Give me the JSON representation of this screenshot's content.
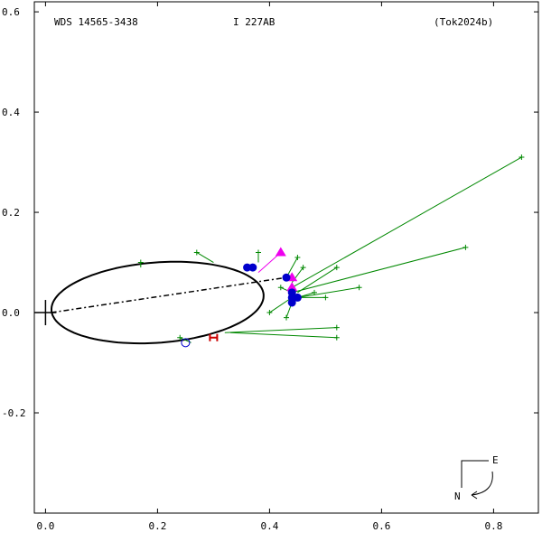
{
  "header": {
    "wds_id": "WDS 14565-3438",
    "discoverer": "I   227AB",
    "reference": "(Tok2024b)"
  },
  "compass": {
    "east_label": "E",
    "north_label": "N"
  },
  "colors": {
    "orbit": "#000000",
    "residual": "#008800",
    "obs_micrometer": "#008800",
    "obs_speckle": "#0000cc",
    "obs_hipparcos": "#cc0000",
    "obs_gaia_or_ao": "#ee00ee"
  },
  "chart_data": {
    "type": "scatter",
    "xlim": [
      -0.02,
      0.88
    ],
    "ylim": [
      -0.4,
      0.62
    ],
    "x_ticks": [
      "0.0",
      "0.2",
      "0.4",
      "0.6",
      "0.8"
    ],
    "x_tick_values": [
      0.0,
      0.2,
      0.4,
      0.6,
      0.8
    ],
    "y_ticks": [
      "0.6",
      "0.4",
      "0.2",
      "0.0",
      "-0.2"
    ],
    "y_tick_values": [
      0.6,
      0.4,
      0.2,
      0.0,
      -0.2
    ],
    "orbit_ellipse": {
      "center": [
        0.2,
        0.02
      ],
      "semi_axis_x": 0.19,
      "semi_axis_y": 0.08,
      "rotation_deg": 5
    },
    "line_of_nodes": [
      [
        0.01,
        0.0
      ],
      [
        0.43,
        0.07
      ]
    ],
    "primary": [
      0.0,
      0.0
    ],
    "micrometer_obs": [
      {
        "obs": [
          0.85,
          0.31
        ],
        "fit": [
          0.44,
          0.05
        ]
      },
      {
        "obs": [
          0.75,
          0.13
        ],
        "fit": [
          0.44,
          0.04
        ]
      },
      {
        "obs": [
          0.52,
          0.09
        ],
        "fit": [
          0.45,
          0.04
        ]
      },
      {
        "obs": [
          0.56,
          0.05
        ],
        "fit": [
          0.45,
          0.03
        ]
      },
      {
        "obs": [
          0.52,
          -0.03
        ],
        "fit": [
          0.32,
          -0.04
        ]
      },
      {
        "obs": [
          0.52,
          -0.05
        ],
        "fit": [
          0.33,
          -0.04
        ]
      },
      {
        "obs": [
          0.27,
          0.12
        ],
        "fit": [
          0.3,
          0.1
        ]
      },
      {
        "obs": [
          0.17,
          0.1
        ],
        "fit": [
          0.17,
          0.09
        ]
      },
      {
        "obs": [
          0.38,
          0.12
        ],
        "fit": [
          0.38,
          0.1
        ]
      },
      {
        "obs": [
          0.45,
          0.11
        ],
        "fit": [
          0.43,
          0.07
        ]
      },
      {
        "obs": [
          0.46,
          0.09
        ],
        "fit": [
          0.44,
          0.06
        ]
      },
      {
        "obs": [
          0.4,
          0.0
        ],
        "fit": [
          0.44,
          0.03
        ]
      },
      {
        "obs": [
          0.43,
          -0.01
        ],
        "fit": [
          0.44,
          0.02
        ]
      },
      {
        "obs": [
          0.48,
          0.04
        ],
        "fit": [
          0.45,
          0.03
        ]
      },
      {
        "obs": [
          0.42,
          0.05
        ],
        "fit": [
          0.44,
          0.04
        ]
      },
      {
        "obs": [
          0.24,
          -0.05
        ],
        "fit": [
          0.26,
          -0.06
        ]
      },
      {
        "obs": [
          0.5,
          0.03
        ],
        "fit": [
          0.45,
          0.03
        ]
      }
    ],
    "speckle_obs": [
      [
        0.36,
        0.09
      ],
      [
        0.37,
        0.09
      ],
      [
        0.43,
        0.07
      ],
      [
        0.44,
        0.04
      ],
      [
        0.44,
        0.03
      ],
      [
        0.45,
        0.03
      ],
      [
        0.44,
        0.02
      ]
    ],
    "open_speckle_obs": [
      [
        0.25,
        -0.06
      ]
    ],
    "hipparcos_obs": [
      [
        0.3,
        -0.05
      ]
    ],
    "triangle_obs": [
      {
        "obs": [
          0.42,
          0.12
        ],
        "fit": [
          0.38,
          0.08
        ]
      },
      {
        "obs": [
          0.44,
          0.07
        ],
        "fit": [
          0.43,
          0.07
        ]
      },
      {
        "obs": [
          0.44,
          0.05
        ],
        "fit": [
          0.44,
          0.05
        ]
      }
    ]
  }
}
